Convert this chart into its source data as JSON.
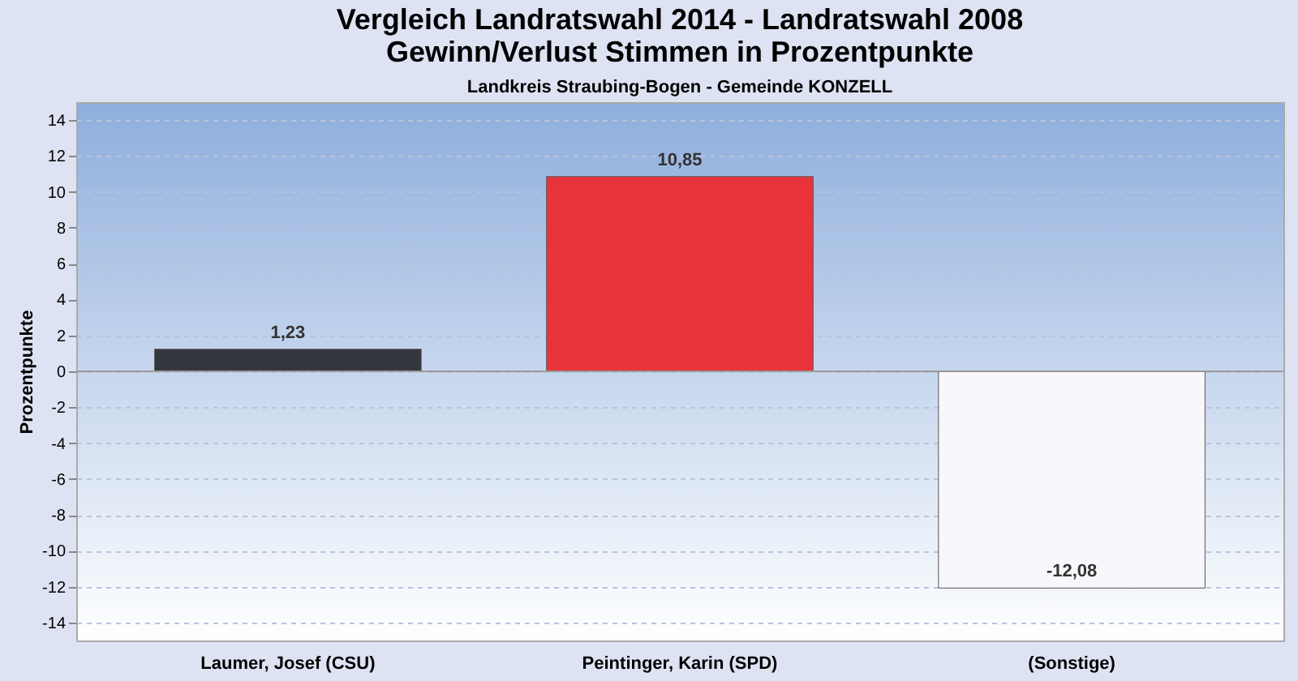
{
  "chart_data": {
    "type": "bar",
    "title": "Vergleich Landratswahl 2014 - Landratswahl 2008\nGewinn/Verlust Stimmen in Prozentpunkte",
    "subtitle": "Landkreis Straubing-Bogen - Gemeinde KONZELL",
    "ylabel": "Prozentpunkte",
    "categories": [
      "Laumer, Josef (CSU)",
      "Peintinger, Karin (SPD)",
      "(Sonstige)"
    ],
    "values": [
      1.23,
      10.85,
      -12.08
    ],
    "colors": [
      "#33363d",
      "#e8333b",
      "#f8f8fc"
    ],
    "value_labels": [
      "1,23",
      "10,85",
      "-12,08"
    ],
    "ylim": [
      -15,
      15
    ],
    "yticks": [
      -14,
      -12,
      -10,
      -8,
      -6,
      -4,
      -2,
      0,
      2,
      4,
      6,
      8,
      10,
      12,
      14
    ],
    "grid": "y"
  }
}
